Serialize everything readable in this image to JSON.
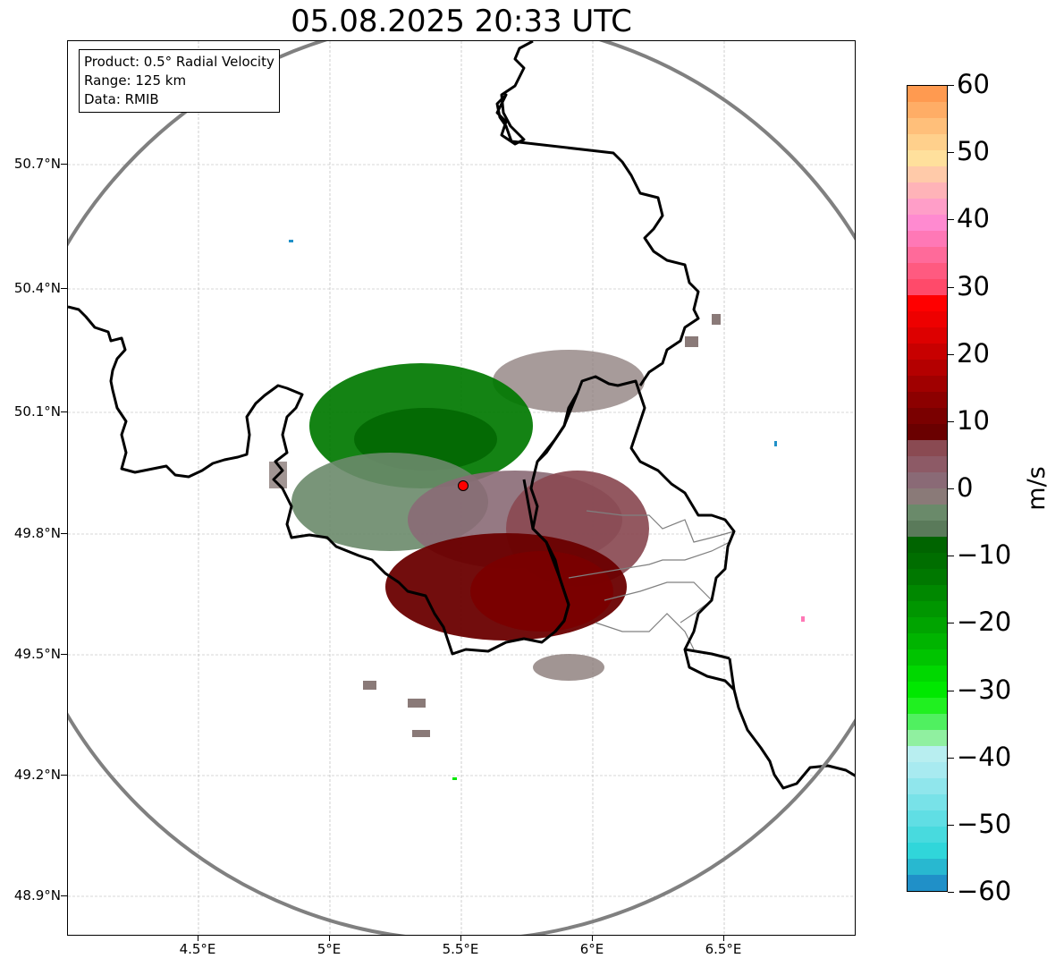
{
  "title": "05.08.2025 20:33 UTC",
  "info_box": {
    "line1": "Product: 0.5° Radial Velocity",
    "line2": "Range: 125 km",
    "line3": "Data: RMIB"
  },
  "map": {
    "lat_ticks": [
      "50.7°N",
      "50.4°N",
      "50.1°N",
      "49.8°N",
      "49.5°N",
      "49.2°N",
      "48.9°N"
    ],
    "lon_ticks": [
      "4.5°E",
      "5°E",
      "5.5°E",
      "6°E",
      "6.5°E"
    ],
    "radar_site": {
      "lon": 5.505,
      "lat": 49.914
    },
    "range_ring_color": "#808080",
    "border_color": "#000000"
  },
  "colorbar": {
    "unit": "m/s",
    "ticks": [
      "60",
      "50",
      "40",
      "30",
      "20",
      "10",
      "0",
      "−10",
      "−20",
      "−30",
      "−40",
      "−50",
      "−60"
    ],
    "min": -60,
    "max": 60,
    "colors_top_to_bottom": [
      "#ff9a50",
      "#ffad66",
      "#ffbf7a",
      "#ffd08c",
      "#ffe09c",
      "#ffcaa9",
      "#ffb3b8",
      "#ff9ec8",
      "#ff8ad0",
      "#ff78b6",
      "#ff6a9a",
      "#ff5a80",
      "#ff4a6a",
      "#ff0000",
      "#ee0000",
      "#dd0000",
      "#c80000",
      "#b40000",
      "#a00000",
      "#8c0000",
      "#7a0000",
      "#6a0000",
      "#8a4a52",
      "#8d5a66",
      "#8a6a76",
      "#8a7a78",
      "#6a8a6a",
      "#5a7a5a",
      "#006400",
      "#006e00",
      "#007800",
      "#008800",
      "#009600",
      "#00a400",
      "#00b400",
      "#00c400",
      "#00d800",
      "#00e800",
      "#20f020",
      "#50f060",
      "#90f0a0",
      "#b8eef0",
      "#a8eaf0",
      "#90e6ec",
      "#78e2e8",
      "#60dee4",
      "#48dade",
      "#30d6da",
      "#28b8d0",
      "#2090c8"
    ]
  }
}
